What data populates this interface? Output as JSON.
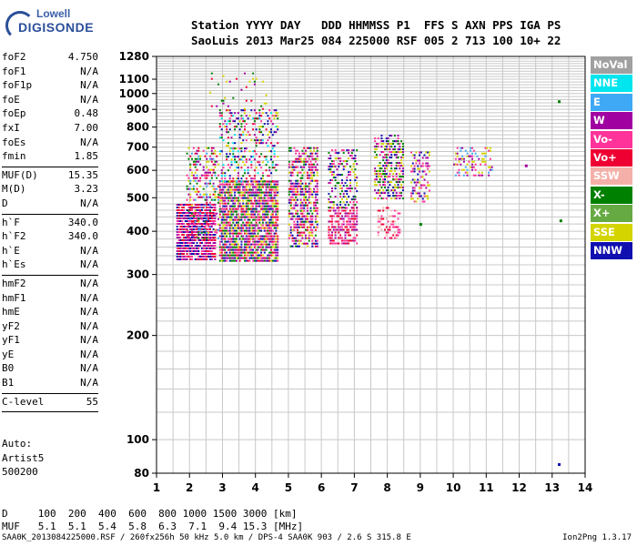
{
  "logo": {
    "line1": "Lowell",
    "line2": "DIGISONDE"
  },
  "header": {
    "labels": "Station YYYY DAY   DDD HHMMSS P1  FFS S AXN PPS IGA PS",
    "values": "SaoLuis 2013 Mar25 084 225000 RSF 005 2 713 100 10+ 22"
  },
  "params_group1": [
    {
      "name": "foF2",
      "value": "4.750"
    },
    {
      "name": "foF1",
      "value": "N/A"
    },
    {
      "name": "foF1p",
      "value": "N/A"
    },
    {
      "name": "foE",
      "value": "N/A"
    },
    {
      "name": "foEp",
      "value": "0.48"
    },
    {
      "name": "fxI",
      "value": "7.00"
    },
    {
      "name": "foEs",
      "value": "N/A"
    },
    {
      "name": "fmin",
      "value": "1.85"
    }
  ],
  "params_group2": [
    {
      "name": "MUF(D)",
      "value": "15.35"
    },
    {
      "name": "M(D)",
      "value": "3.23"
    },
    {
      "name": "D",
      "value": "N/A"
    }
  ],
  "params_group3": [
    {
      "name": "h`F",
      "value": "340.0"
    },
    {
      "name": "h`F2",
      "value": "340.0"
    },
    {
      "name": "h`E",
      "value": "N/A"
    },
    {
      "name": "h`Es",
      "value": "N/A"
    }
  ],
  "params_group4": [
    {
      "name": "hmF2",
      "value": "N/A"
    },
    {
      "name": "hmF1",
      "value": "N/A"
    },
    {
      "name": "hmE",
      "value": "N/A"
    },
    {
      "name": "yF2",
      "value": "N/A"
    },
    {
      "name": "yF1",
      "value": "N/A"
    },
    {
      "name": "yE",
      "value": "N/A"
    },
    {
      "name": "B0",
      "value": "N/A"
    },
    {
      "name": "B1",
      "value": "N/A"
    }
  ],
  "params_group5": [
    {
      "name": "C-level",
      "value": "55"
    }
  ],
  "auto": {
    "line1": "Auto:",
    "line2": "Artist5",
    "line3": "500200"
  },
  "legend": [
    {
      "label": "NoVal",
      "color": "#a0a0a0"
    },
    {
      "label": "NNE",
      "color": "#00e5ee"
    },
    {
      "label": "E",
      "color": "#3fa9f5"
    },
    {
      "label": "W",
      "color": "#a000a0"
    },
    {
      "label": "Vo-",
      "color": "#ff3399"
    },
    {
      "label": "Vo+",
      "color": "#ee0033"
    },
    {
      "label": "SSW",
      "color": "#f4b0a8"
    },
    {
      "label": "X-",
      "color": "#008000"
    },
    {
      "label": "X+",
      "color": "#66aa44"
    },
    {
      "label": "SSE",
      "color": "#d4d400"
    },
    {
      "label": "NNW",
      "color": "#1010b0"
    }
  ],
  "muf": {
    "d_line": "D     100  200  400  600  800 1000 1500 3000 [km]",
    "muf_line": "MUF   5.1  5.1  5.4  5.8  6.3  7.1  9.4 15.3 [MHz]"
  },
  "footer": {
    "left": "SAA0K_2013084225000.RSF / 260fx256h 50 kHz 5.0 km / DPS-4 SAA0K 903 / 2.6 S 315.8 E",
    "right": "Ion2Png 1.3.17"
  },
  "chart_data": {
    "type": "scatter",
    "title": "",
    "xlabel": "",
    "ylabel": "",
    "xlim": [
      1,
      14
    ],
    "ylim": [
      80,
      1280
    ],
    "y_scale": "log",
    "grid": true,
    "x_ticks": [
      "1",
      "2",
      "3",
      "4",
      "5",
      "6",
      "7",
      "8",
      "9",
      "10",
      "11",
      "12",
      "13",
      "14"
    ],
    "y_ticks": [
      {
        "value": 1280,
        "label": "1280"
      },
      {
        "value": 1100,
        "label": "1100"
      },
      {
        "value": 1000,
        "label": "1000"
      },
      {
        "value": 900,
        "label": "900"
      },
      {
        "value": 800,
        "label": "800"
      },
      {
        "value": 700,
        "label": "700"
      },
      {
        "value": 600,
        "label": "600"
      },
      {
        "value": 500,
        "label": "500"
      },
      {
        "value": 400,
        "label": "400"
      },
      {
        "value": 300,
        "label": "300"
      },
      {
        "value": 200,
        "label": "200"
      },
      {
        "value": 100,
        "label": "100"
      },
      {
        "value": 80,
        "label": "80"
      }
    ],
    "clusters": [
      {
        "x": [
          1.6,
          2.8
        ],
        "h": [
          330,
          480
        ],
        "density": 0.9,
        "colors": [
          "#ff3399",
          "#a000a0",
          "#ee0033",
          "#1010b0"
        ]
      },
      {
        "x": [
          1.9,
          2.9
        ],
        "h": [
          380,
          700
        ],
        "density": 0.35,
        "colors": [
          "#a000a0",
          "#ff3399",
          "#d4d400",
          "#008000",
          "#3fa9f5",
          "#ee0033"
        ]
      },
      {
        "x": [
          2.9,
          4.7
        ],
        "h": [
          330,
          560
        ],
        "density": 0.85,
        "colors": [
          "#ff3399",
          "#a000a0",
          "#d4d400",
          "#ee0033",
          "#1010b0",
          "#008000"
        ]
      },
      {
        "x": [
          2.9,
          4.7
        ],
        "h": [
          560,
          900
        ],
        "density": 0.3,
        "colors": [
          "#a000a0",
          "#d4d400",
          "#ff3399",
          "#1010b0",
          "#00e5ee",
          "#ee0033",
          "#008000"
        ]
      },
      {
        "x": [
          2.6,
          4.7
        ],
        "h": [
          900,
          1150
        ],
        "density": 0.05,
        "colors": [
          "#a000a0",
          "#d4d400",
          "#008000",
          "#ee0033"
        ]
      },
      {
        "x": [
          5.0,
          5.9
        ],
        "h": [
          360,
          700
        ],
        "density": 0.6,
        "colors": [
          "#ff3399",
          "#a000a0",
          "#d4d400",
          "#008000",
          "#ee0033",
          "#1010b0"
        ]
      },
      {
        "x": [
          6.2,
          7.1
        ],
        "h": [
          370,
          470
        ],
        "density": 0.6,
        "colors": [
          "#ee0033",
          "#ff3399",
          "#a000a0"
        ]
      },
      {
        "x": [
          6.2,
          7.1
        ],
        "h": [
          470,
          690
        ],
        "density": 0.45,
        "colors": [
          "#d4d400",
          "#a000a0",
          "#008000",
          "#ff3399",
          "#1010b0"
        ]
      },
      {
        "x": [
          7.6,
          8.5
        ],
        "h": [
          500,
          760
        ],
        "density": 0.55,
        "colors": [
          "#d4d400",
          "#a000a0",
          "#ff3399",
          "#1010b0",
          "#008000"
        ]
      },
      {
        "x": [
          7.7,
          8.4
        ],
        "h": [
          380,
          470
        ],
        "density": 0.35,
        "colors": [
          "#ee0033",
          "#ff3399",
          "#f4b0a8"
        ]
      },
      {
        "x": [
          8.7,
          9.3
        ],
        "h": [
          490,
          680
        ],
        "density": 0.45,
        "colors": [
          "#d4d400",
          "#a000a0",
          "#ff3399",
          "#1010b0"
        ]
      },
      {
        "x": [
          10.0,
          11.2
        ],
        "h": [
          580,
          700
        ],
        "density": 0.35,
        "colors": [
          "#3fa9f5",
          "#a000a0",
          "#d4d400",
          "#ff3399"
        ]
      }
    ],
    "isolated_points": [
      {
        "x": 13.2,
        "h": 950,
        "color": "#008000"
      },
      {
        "x": 13.25,
        "h": 430,
        "color": "#008000"
      },
      {
        "x": 13.2,
        "h": 85,
        "color": "#1010b0"
      },
      {
        "x": 12.2,
        "h": 620,
        "color": "#a000a0"
      },
      {
        "x": 9.0,
        "h": 420,
        "color": "#008000"
      }
    ]
  }
}
